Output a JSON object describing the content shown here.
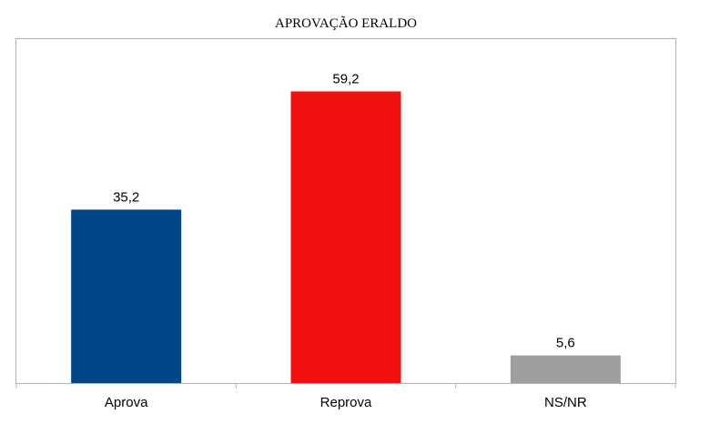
{
  "chart_data": {
    "type": "bar",
    "title": "APROVAÇÃO ERALDO",
    "categories": [
      "Aprova",
      "Reprova",
      "NS/NR"
    ],
    "values": [
      35.2,
      59.2,
      5.6
    ],
    "value_labels": [
      "35,2",
      "59,2",
      "5,6"
    ],
    "colors": [
      "#004586",
      "#f01010",
      "#9e9e9e"
    ],
    "ylim": [
      0,
      70
    ],
    "grid": false,
    "legend": "none"
  }
}
